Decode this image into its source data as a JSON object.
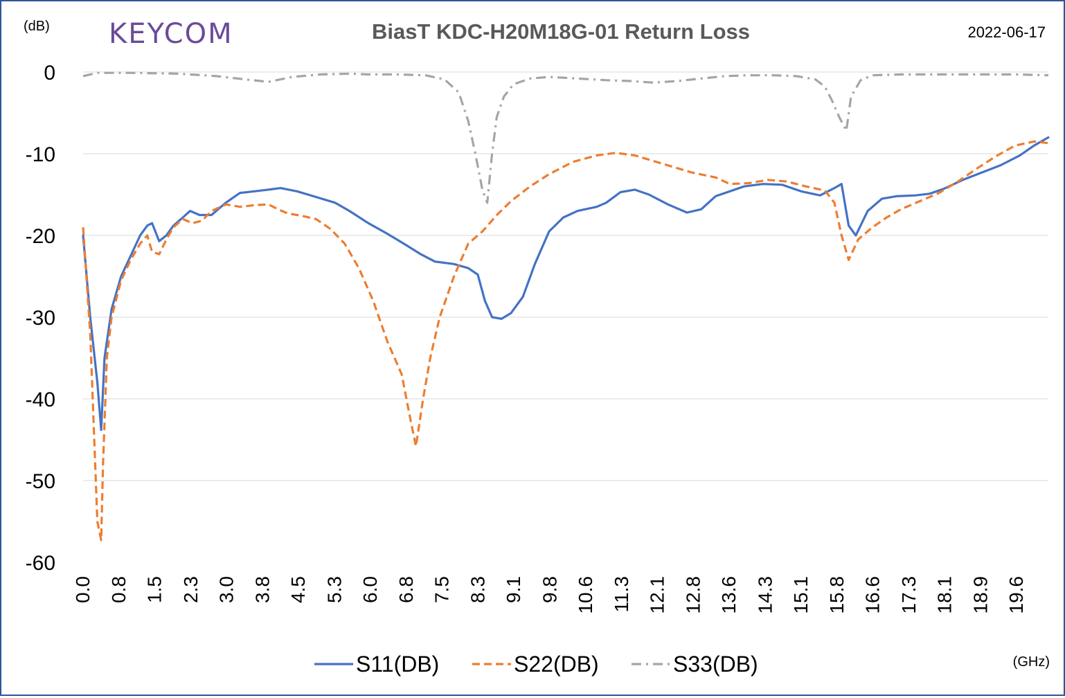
{
  "header": {
    "logo": "KEYCOM",
    "title": "BiasT  KDC-H20M18G-01 Return Loss",
    "date": "2022-06-17"
  },
  "axes": {
    "y_unit": "(dB)",
    "x_unit": "(GHz)"
  },
  "chart_data": {
    "type": "line",
    "title": "BiasT  KDC-H20M18G-01 Return Loss",
    "xlabel": "(GHz)",
    "ylabel": "(dB)",
    "xlim": [
      0,
      20.3
    ],
    "ylim": [
      -60,
      0
    ],
    "y_ticks": [
      "0",
      "-10",
      "-20",
      "-30",
      "-40",
      "-50",
      "-60"
    ],
    "y_tick_values": [
      0,
      -10,
      -20,
      -30,
      -40,
      -50,
      -60
    ],
    "x_tick_labels": [
      "0.0",
      "0.8",
      "1.5",
      "2.3",
      "3.0",
      "3.8",
      "4.5",
      "5.3",
      "6.0",
      "6.8",
      "7.5",
      "8.3",
      "9.1",
      "9.8",
      "10.6",
      "11.3",
      "12.1",
      "12.8",
      "13.6",
      "14.3",
      "15.1",
      "15.8",
      "16.6",
      "17.3",
      "18.1",
      "18.9",
      "19.6"
    ],
    "x_tick_values": [
      0.0,
      0.76,
      1.51,
      2.27,
      3.02,
      3.78,
      4.53,
      5.29,
      6.04,
      6.8,
      7.55,
      8.31,
      9.06,
      9.82,
      10.57,
      11.33,
      12.08,
      12.84,
      13.59,
      14.35,
      15.1,
      15.86,
      16.61,
      17.37,
      18.12,
      18.88,
      19.63
    ],
    "grid": true,
    "legend_position": "bottom",
    "series": [
      {
        "name": "S11(DB)",
        "color": "#4472c4",
        "dash": "solid",
        "x": [
          0.0,
          0.15,
          0.3,
          0.38,
          0.45,
          0.6,
          0.8,
          1.0,
          1.2,
          1.35,
          1.45,
          1.6,
          1.75,
          1.9,
          2.1,
          2.25,
          2.45,
          2.7,
          3.0,
          3.3,
          3.6,
          3.9,
          4.15,
          4.5,
          4.9,
          5.3,
          5.6,
          6.0,
          6.4,
          6.8,
          7.1,
          7.4,
          7.8,
          8.1,
          8.3,
          8.45,
          8.6,
          8.8,
          9.0,
          9.25,
          9.5,
          9.8,
          10.1,
          10.4,
          10.8,
          11.0,
          11.3,
          11.6,
          11.9,
          12.3,
          12.7,
          13.0,
          13.3,
          13.6,
          13.9,
          14.3,
          14.7,
          15.1,
          15.5,
          15.8,
          15.95,
          16.1,
          16.25,
          16.5,
          16.8,
          17.1,
          17.5,
          17.8,
          18.1,
          18.5,
          18.9,
          19.3,
          19.7,
          20.0,
          20.3
        ],
        "y": [
          -20.0,
          -30.0,
          -38.0,
          -43.8,
          -35.0,
          -29.0,
          -25.0,
          -22.5,
          -20.0,
          -18.8,
          -18.5,
          -20.7,
          -20.0,
          -18.8,
          -17.8,
          -17.0,
          -17.5,
          -17.5,
          -16.0,
          -14.8,
          -14.6,
          -14.4,
          -14.2,
          -14.6,
          -15.3,
          -16.0,
          -17.0,
          -18.5,
          -19.8,
          -21.2,
          -22.3,
          -23.2,
          -23.5,
          -24.0,
          -24.8,
          -28.0,
          -30.0,
          -30.2,
          -29.5,
          -27.5,
          -23.5,
          -19.5,
          -17.8,
          -17.0,
          -16.5,
          -16.0,
          -14.7,
          -14.4,
          -15.0,
          -16.2,
          -17.2,
          -16.8,
          -15.2,
          -14.6,
          -14.0,
          -13.7,
          -13.8,
          -14.6,
          -15.1,
          -14.2,
          -13.7,
          -18.8,
          -20.0,
          -17.0,
          -15.5,
          -15.2,
          -15.1,
          -14.9,
          -14.3,
          -13.2,
          -12.3,
          -11.4,
          -10.2,
          -9.0,
          -8.0
        ]
      },
      {
        "name": "S22(DB)",
        "color": "#ed7d31",
        "dash": "dashed",
        "x": [
          0.0,
          0.15,
          0.3,
          0.38,
          0.42,
          0.5,
          0.6,
          0.8,
          1.0,
          1.2,
          1.35,
          1.45,
          1.6,
          1.75,
          1.9,
          2.1,
          2.3,
          2.5,
          2.7,
          3.0,
          3.3,
          3.6,
          3.9,
          4.1,
          4.3,
          4.6,
          4.9,
          5.2,
          5.5,
          5.8,
          6.1,
          6.4,
          6.7,
          6.9,
          7.0,
          7.15,
          7.3,
          7.5,
          7.8,
          8.1,
          8.4,
          8.7,
          9.0,
          9.4,
          9.8,
          10.3,
          10.8,
          11.2,
          11.6,
          12.0,
          12.4,
          12.8,
          13.3,
          13.6,
          14.0,
          14.4,
          14.8,
          15.2,
          15.6,
          15.8,
          15.95,
          16.1,
          16.3,
          16.6,
          16.9,
          17.2,
          17.6,
          18.0,
          18.4,
          18.8,
          19.2,
          19.6,
          20.0,
          20.3
        ],
        "y": [
          -19.0,
          -32.0,
          -55.0,
          -57.3,
          -48.0,
          -35.0,
          -30.0,
          -25.5,
          -23.0,
          -21.0,
          -20.0,
          -22.0,
          -22.3,
          -20.5,
          -19.0,
          -18.0,
          -18.5,
          -18.2,
          -17.0,
          -16.2,
          -16.5,
          -16.3,
          -16.2,
          -16.8,
          -17.3,
          -17.6,
          -18.0,
          -19.2,
          -21.0,
          -24.0,
          -28.0,
          -33.0,
          -37.0,
          -43.0,
          -45.8,
          -40.0,
          -35.0,
          -30.0,
          -25.0,
          -21.0,
          -19.5,
          -17.5,
          -15.8,
          -14.0,
          -12.5,
          -11.0,
          -10.2,
          -9.9,
          -10.2,
          -10.9,
          -11.6,
          -12.3,
          -12.9,
          -13.7,
          -13.6,
          -13.2,
          -13.4,
          -14.0,
          -14.5,
          -16.0,
          -20.0,
          -23.0,
          -20.5,
          -19.0,
          -17.8,
          -16.8,
          -15.8,
          -14.8,
          -13.4,
          -11.8,
          -10.3,
          -9.0,
          -8.5,
          -8.7
        ]
      },
      {
        "name": "S33(DB)",
        "color": "#a5a5a5",
        "dash": "dashdot",
        "x": [
          0.0,
          0.3,
          1.0,
          2.0,
          2.8,
          3.4,
          3.9,
          4.4,
          5.0,
          5.6,
          6.0,
          6.6,
          7.2,
          7.6,
          7.9,
          8.1,
          8.25,
          8.4,
          8.5,
          8.6,
          8.7,
          8.85,
          9.05,
          9.4,
          9.8,
          10.4,
          11.0,
          11.5,
          12.0,
          12.5,
          13.0,
          13.5,
          14.0,
          14.5,
          15.0,
          15.4,
          15.6,
          15.75,
          15.9,
          16.05,
          16.15,
          16.35,
          16.6,
          17.2,
          18.0,
          18.8,
          19.6,
          20.3
        ],
        "y": [
          -0.5,
          -0.1,
          -0.1,
          -0.2,
          -0.5,
          -0.9,
          -1.2,
          -0.6,
          -0.3,
          -0.2,
          -0.3,
          -0.3,
          -0.4,
          -0.9,
          -2.5,
          -6.0,
          -10.0,
          -14.5,
          -16.0,
          -10.0,
          -5.5,
          -3.0,
          -1.5,
          -0.8,
          -0.6,
          -0.8,
          -1.0,
          -1.1,
          -1.3,
          -1.1,
          -0.8,
          -0.5,
          -0.4,
          -0.4,
          -0.5,
          -0.9,
          -1.8,
          -3.5,
          -5.5,
          -7.2,
          -3.0,
          -1.0,
          -0.4,
          -0.3,
          -0.3,
          -0.3,
          -0.3,
          -0.4
        ]
      }
    ]
  }
}
